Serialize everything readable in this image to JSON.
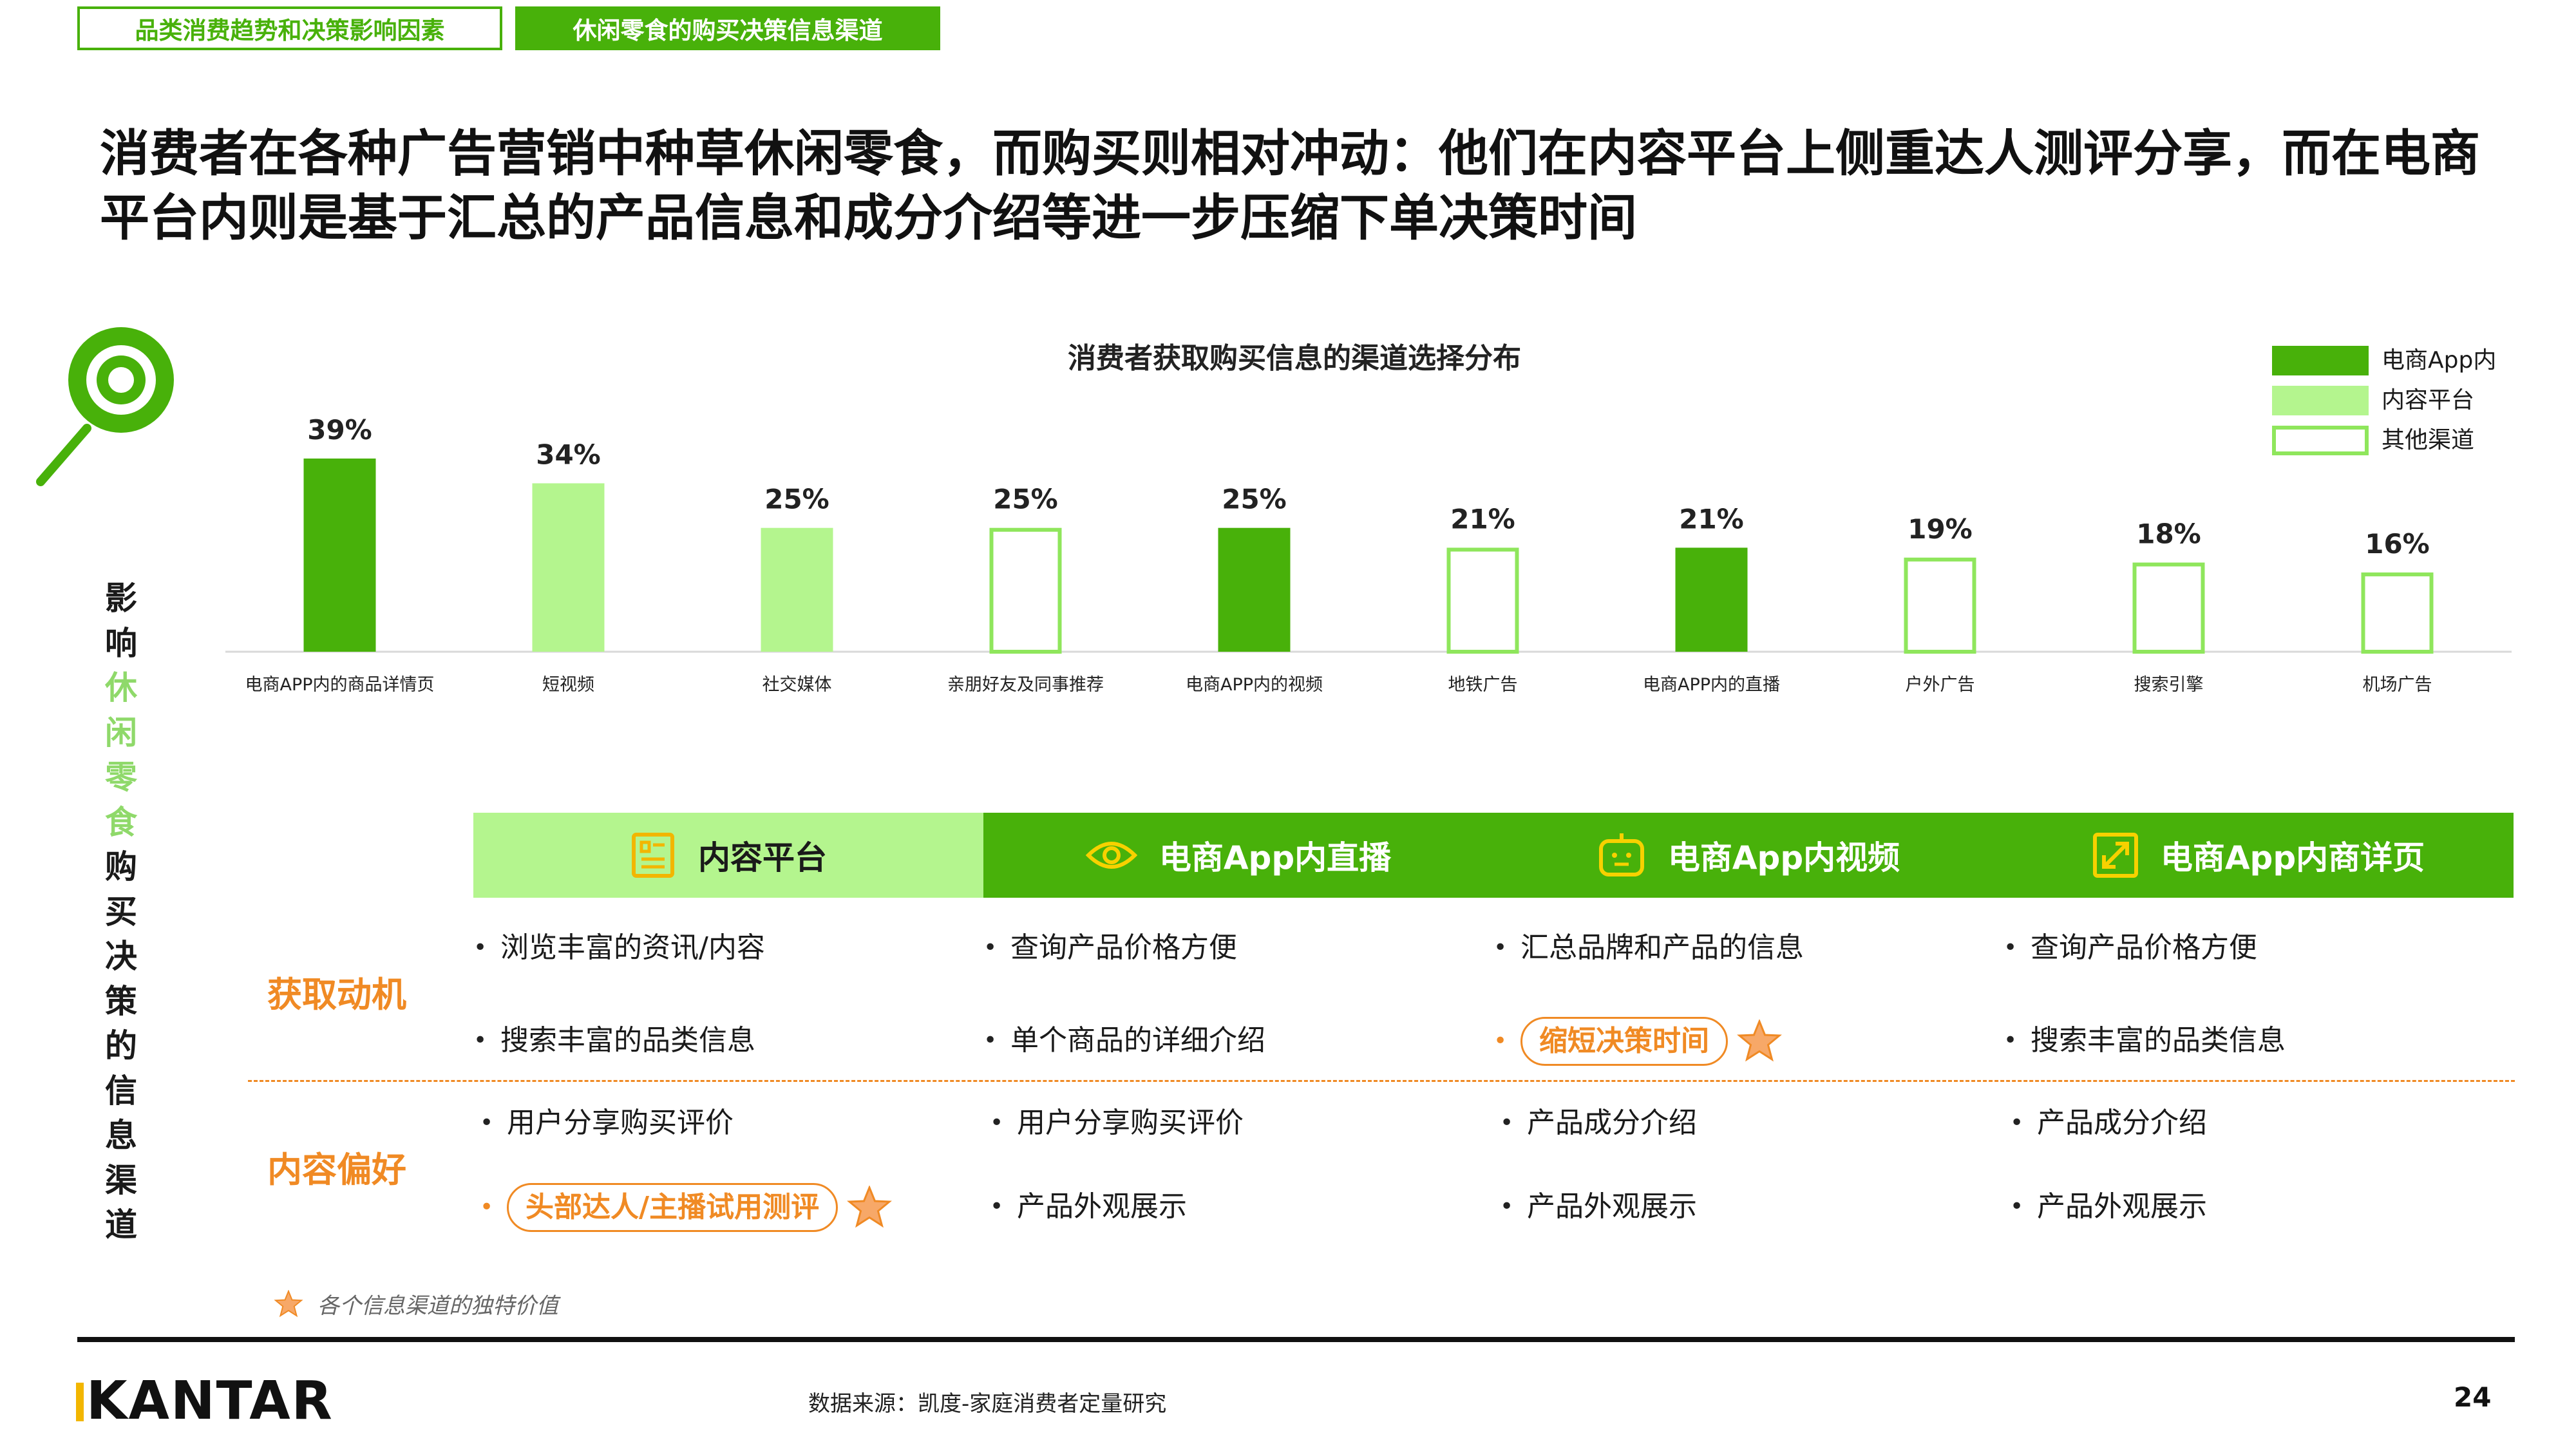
{
  "breadcrumb": {
    "section": "品类消费趋势和决策影响因素",
    "current": "休闲零食的购买决策信息渠道"
  },
  "headline": "消费者在各种广告营销中种草休闲零食，而购买则相对冲动：他们在内容平台上侧重达人测评分享，而在电商平台内则是基于汇总的产品信息和成分介绍等进一步压缩下单决策时间",
  "side_title": {
    "before": [
      "影",
      "响"
    ],
    "highlight": [
      "休",
      "闲",
      "零",
      "食"
    ],
    "after": [
      "购",
      "买",
      "决",
      "策",
      "的",
      "信",
      "息",
      "渠",
      "道"
    ]
  },
  "colors": {
    "dark_green": "#48b10a",
    "light_green": "#b4f58e",
    "outline_green": "#8fe65c",
    "orange": "#f08a24",
    "star": "#f7a868"
  },
  "chart_data": {
    "type": "bar",
    "title": "消费者获取购买信息的渠道选择分布",
    "categories": [
      "电商APP内的商品详情页",
      "短视频",
      "社交媒体",
      "亲朋好友及同事推荐",
      "电商APP内的视频",
      "地铁广告",
      "电商APP内的直播",
      "户外广告",
      "搜索引擎",
      "机场广告"
    ],
    "values": [
      39,
      34,
      25,
      25,
      25,
      21,
      21,
      19,
      18,
      16
    ],
    "value_labels": [
      "39%",
      "34%",
      "25%",
      "25%",
      "25%",
      "21%",
      "21%",
      "19%",
      "18%",
      "16%"
    ],
    "groups": [
      "电商App内",
      "内容平台",
      "内容平台",
      "其他渠道",
      "电商App内",
      "其他渠道",
      "电商App内",
      "其他渠道",
      "其他渠道",
      "其他渠道"
    ],
    "legend": [
      {
        "label": "电商App内",
        "style": "dark"
      },
      {
        "label": "内容平台",
        "style": "light"
      },
      {
        "label": "其他渠道",
        "style": "outline"
      }
    ],
    "legend_position": "top-right",
    "ylim": [
      0,
      40
    ],
    "grid": false
  },
  "table": {
    "channels": [
      {
        "label": "内容平台",
        "icon": "document-icon"
      },
      {
        "label": "电商App内直播",
        "icon": "eye-icon"
      },
      {
        "label": "电商App内视频",
        "icon": "robot-icon"
      },
      {
        "label": "电商App内商详页",
        "icon": "expand-icon"
      }
    ],
    "row_labels": [
      "获取动机",
      "内容偏好"
    ],
    "motivation": [
      [
        "浏览丰富的资讯/内容",
        "搜索丰富的品类信息"
      ],
      [
        "查询产品价格方便",
        "单个商品的详细介绍"
      ],
      [
        "汇总品牌和产品的信息",
        "缩短决策时间"
      ],
      [
        "查询产品价格方便",
        "搜索丰富的品类信息"
      ]
    ],
    "preference": [
      [
        "用户分享购买评价",
        "头部达人/主播试用测评"
      ],
      [
        "用户分享购买评价",
        "产品外观展示"
      ],
      [
        "产品成分介绍",
        "产品外观展示"
      ],
      [
        "产品成分介绍",
        "产品外观展示"
      ]
    ]
  },
  "footnote": "各个信息渠道的独特价值",
  "footer": {
    "logo": "KANTAR",
    "source": "数据来源：凯度-家庭消费者定量研究",
    "page": "24"
  }
}
